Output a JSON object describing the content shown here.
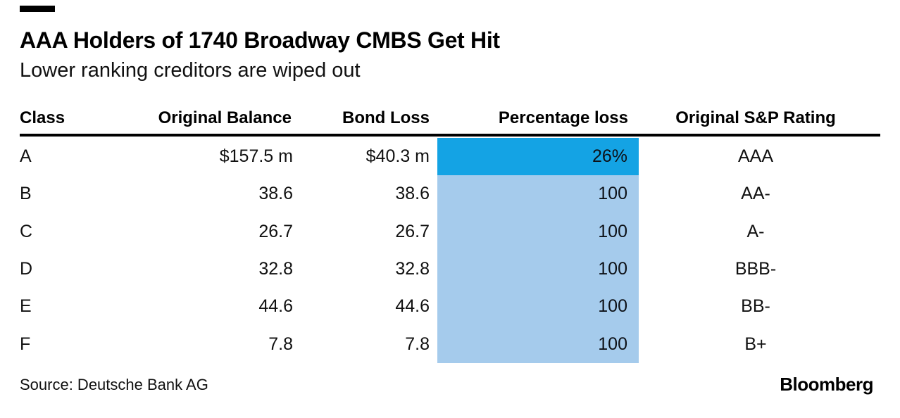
{
  "chart_data": {
    "type": "table",
    "title": "AAA Holders of 1740 Broadway CMBS Get Hit",
    "subtitle": "Lower ranking creditors are wiped out",
    "columns": [
      "Class",
      "Original Balance",
      "Bond Loss",
      "Percentage loss",
      "Original S&P Rating"
    ],
    "rows": [
      {
        "class": "A",
        "original_balance": "$157.5 m",
        "bond_loss": "$40.3 m",
        "percentage_loss": "26%",
        "rating": "AAA",
        "highlight": "strong"
      },
      {
        "class": "B",
        "original_balance": "38.6",
        "bond_loss": "38.6",
        "percentage_loss": "100",
        "rating": "AA-",
        "highlight": "light"
      },
      {
        "class": "C",
        "original_balance": "26.7",
        "bond_loss": "26.7",
        "percentage_loss": "100",
        "rating": "A-",
        "highlight": "light"
      },
      {
        "class": "D",
        "original_balance": "32.8",
        "bond_loss": "32.8",
        "percentage_loss": "100",
        "rating": "BBB-",
        "highlight": "light"
      },
      {
        "class": "E",
        "original_balance": "44.6",
        "bond_loss": "44.6",
        "percentage_loss": "100",
        "rating": "BB-",
        "highlight": "light"
      },
      {
        "class": "F",
        "original_balance": "7.8",
        "bond_loss": "7.8",
        "percentage_loss": "100",
        "rating": "B+",
        "highlight": "light"
      }
    ],
    "highlight_colors": {
      "strong": "#14a3e4",
      "light": "#a5cbec"
    },
    "source": "Source: Deutsche Bank AG",
    "brand": "Bloomberg",
    "layout": {
      "legend": "none",
      "grid": "off",
      "header_rule_color": "#000000"
    }
  }
}
